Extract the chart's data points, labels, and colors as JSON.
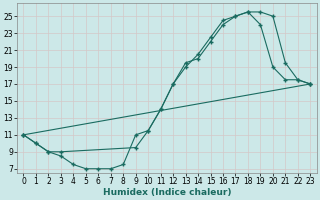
{
  "title": "",
  "xlabel": "Humidex (Indice chaleur)",
  "ylabel": "",
  "bg_color": "#cce8e8",
  "grid_color": "#b8d8d8",
  "line_color": "#1a6b60",
  "marker_color": "#1a6b60",
  "xlim": [
    -0.5,
    23.5
  ],
  "ylim": [
    6.5,
    26.5
  ],
  "xticks": [
    0,
    1,
    2,
    3,
    4,
    5,
    6,
    7,
    8,
    9,
    10,
    11,
    12,
    13,
    14,
    15,
    16,
    17,
    18,
    19,
    20,
    21,
    22,
    23
  ],
  "yticks": [
    7,
    9,
    11,
    13,
    15,
    17,
    19,
    21,
    23,
    25
  ],
  "line1_x": [
    0,
    1,
    2,
    3,
    4,
    5,
    6,
    7,
    8,
    9,
    10,
    11,
    12,
    13,
    14,
    15,
    16,
    17,
    18,
    19,
    20,
    21,
    22,
    23
  ],
  "line1_y": [
    11,
    10,
    9,
    8.5,
    7.5,
    7,
    7,
    7,
    7.5,
    11,
    11.5,
    14,
    17,
    19.5,
    20,
    22,
    24,
    25,
    25.5,
    25.5,
    25,
    19.5,
    17.5,
    17
  ],
  "line2_x": [
    0,
    1,
    2,
    3,
    9,
    10,
    11,
    12,
    13,
    14,
    15,
    16,
    17,
    18,
    19,
    20,
    21,
    22,
    23
  ],
  "line2_y": [
    11,
    10,
    9,
    9,
    9.5,
    11.5,
    14,
    17,
    19,
    20.5,
    22.5,
    24.5,
    25,
    25.5,
    24,
    19,
    17.5,
    17.5,
    17
  ],
  "line3_x": [
    0,
    23
  ],
  "line3_y": [
    11,
    17
  ]
}
